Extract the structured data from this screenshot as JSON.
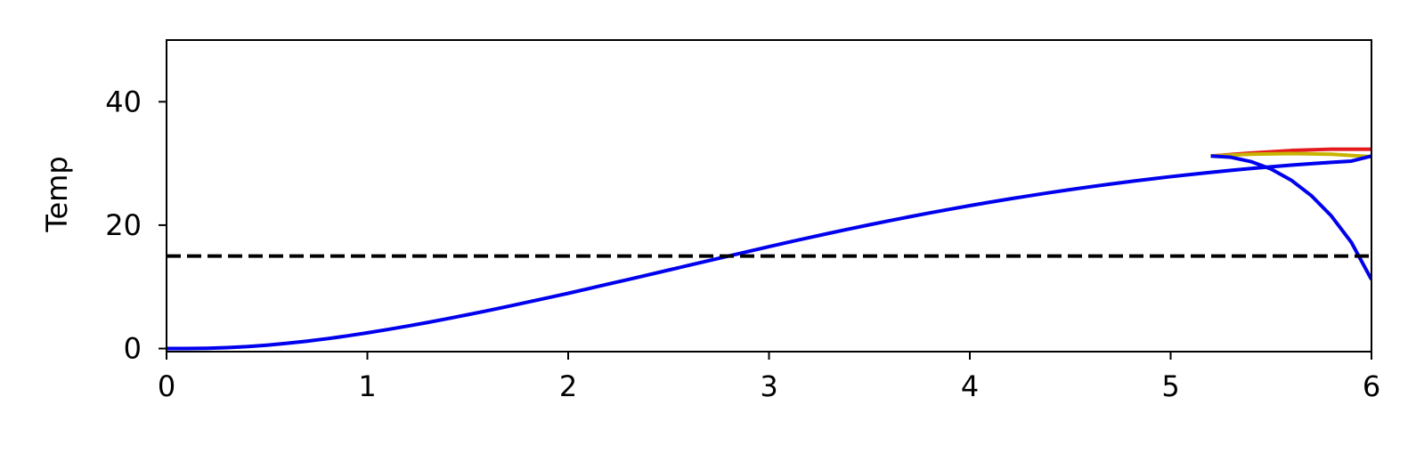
{
  "chart_data": {
    "type": "line",
    "title": "",
    "xlabel": "",
    "ylabel": "Temp",
    "xlim": [
      0,
      6
    ],
    "ylim": [
      -0.5,
      50
    ],
    "xticks": [
      0,
      1,
      2,
      3,
      4,
      5,
      6
    ],
    "yticks": [
      0,
      20,
      40
    ],
    "grid": false,
    "legend": "none",
    "reference_line": {
      "y": 15,
      "style": "dashed",
      "color": "#000000"
    },
    "series": [
      {
        "color": "#e41a1c",
        "x": [
          5.2,
          5.4,
          5.6,
          5.8,
          6.0
        ],
        "y": [
          31.2,
          31.7,
          32.1,
          32.3,
          32.3
        ]
      },
      {
        "color": "#c8b400",
        "x": [
          5.2,
          5.4,
          5.6,
          5.8,
          6.0
        ],
        "y": [
          31.2,
          31.5,
          31.6,
          31.5,
          31.1
        ]
      },
      {
        "color": "#0000ee",
        "x": [
          0,
          0.1,
          0.2,
          0.3,
          0.4,
          0.5,
          0.6,
          0.7,
          0.8,
          0.9,
          1.0,
          1.1,
          1.2,
          1.3,
          1.4,
          1.5,
          1.6,
          1.7,
          1.8,
          1.9,
          2.0,
          2.1,
          2.2,
          2.3,
          2.4,
          2.5,
          2.6,
          2.7,
          2.8,
          2.9,
          3.0,
          3.1,
          3.2,
          3.3,
          3.4,
          3.5,
          3.6,
          3.7,
          3.8,
          3.9,
          4.0,
          4.1,
          4.2,
          4.3,
          4.4,
          4.5,
          4.6,
          4.7,
          4.8,
          4.9,
          5.0,
          5.1,
          5.2,
          5.3,
          5.4,
          5.5,
          5.6,
          5.7,
          5.8,
          5.9,
          6.0
        ],
        "y": [
          0,
          0.01,
          0.05,
          0.15,
          0.32,
          0.55,
          0.85,
          1.2,
          1.6,
          2.05,
          2.55,
          3.08,
          3.64,
          4.23,
          4.85,
          5.49,
          6.15,
          6.83,
          7.53,
          8.24,
          8.95,
          9.7,
          10.45,
          11.2,
          11.96,
          12.72,
          13.48,
          14.24,
          15.0,
          15.76,
          16.52,
          17.26,
          17.98,
          18.69,
          19.38,
          20.06,
          20.72,
          21.36,
          21.98,
          22.58,
          23.16,
          23.72,
          24.26,
          24.78,
          25.28,
          25.76,
          26.22,
          26.66,
          27.08,
          27.48,
          27.86,
          28.22,
          28.56,
          28.88,
          29.18,
          29.46,
          29.72,
          29.96,
          30.18,
          30.38,
          31.2
        ]
      },
      {
        "color": "#0000ee",
        "x": [
          5.2,
          5.3,
          5.4,
          5.5,
          5.6,
          5.7,
          5.8,
          5.9,
          6.0
        ],
        "y": [
          31.2,
          31.0,
          30.3,
          29.1,
          27.3,
          24.8,
          21.5,
          17.2,
          11.2
        ]
      }
    ]
  }
}
